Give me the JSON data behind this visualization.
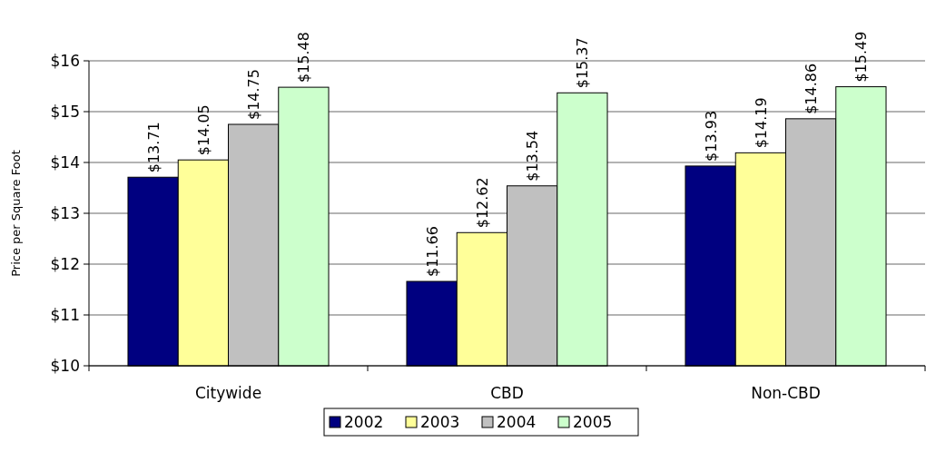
{
  "chart_data": {
    "type": "bar",
    "ylabel": "Price per Square Foot",
    "categories": [
      "Citywide",
      "CBD",
      "Non-CBD"
    ],
    "series": [
      {
        "name": "2002",
        "color": "#000080",
        "values": [
          13.71,
          11.66,
          13.93
        ],
        "value_labels": [
          "$13.71",
          "$11.66",
          "$13.93"
        ]
      },
      {
        "name": "2003",
        "color": "#ffff99",
        "values": [
          14.05,
          12.62,
          14.19
        ],
        "value_labels": [
          "$14.05",
          "$12.62",
          "$14.19"
        ]
      },
      {
        "name": "2004",
        "color": "#c0c0c0",
        "values": [
          14.75,
          13.54,
          14.86
        ],
        "value_labels": [
          "$14.75",
          "$13.54",
          "$14.86"
        ]
      },
      {
        "name": "2005",
        "color": "#ccffcc",
        "values": [
          15.48,
          15.37,
          15.49
        ],
        "value_labels": [
          "$15.48",
          "$15.37",
          "$15.49"
        ]
      }
    ],
    "ylim": [
      10,
      16
    ],
    "yticks": [
      {
        "value": 10,
        "label": "$10"
      },
      {
        "value": 11,
        "label": "$11"
      },
      {
        "value": 12,
        "label": "$12"
      },
      {
        "value": 13,
        "label": "$13"
      },
      {
        "value": 14,
        "label": "$14"
      },
      {
        "value": 15,
        "label": "$15"
      },
      {
        "value": 16,
        "label": "$16"
      }
    ],
    "grid": "y",
    "legend": "bottom"
  }
}
